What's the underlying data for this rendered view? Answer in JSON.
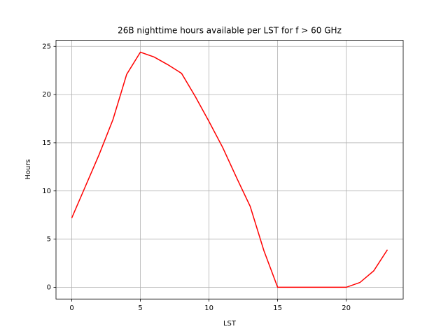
{
  "chart_data": {
    "type": "line",
    "title": "26B nighttime hours available per LST for f > 60 GHz",
    "x_label": "LST",
    "y_label": "Hours",
    "x": [
      0,
      1,
      2,
      3,
      4,
      5,
      6,
      7,
      8,
      9,
      10,
      11,
      12,
      13,
      14,
      15,
      16,
      17,
      18,
      19,
      20,
      21,
      22,
      23
    ],
    "series": [
      {
        "name": "Hours",
        "color": "#ff0000",
        "values": [
          7.2,
          10.5,
          13.8,
          17.4,
          22.1,
          24.4,
          23.9,
          23.1,
          22.2,
          19.8,
          17.2,
          14.5,
          11.4,
          8.4,
          3.8,
          0,
          0,
          0,
          0,
          0,
          0,
          0.5,
          1.7,
          3.9
        ]
      }
    ],
    "xlim": [
      -1.15,
      24.15
    ],
    "xticks": [
      0,
      5,
      10,
      15,
      20
    ],
    "ylim": [
      -1.22,
      25.63
    ],
    "yticks": [
      0,
      5,
      10,
      15,
      20,
      25
    ],
    "grid": true
  }
}
